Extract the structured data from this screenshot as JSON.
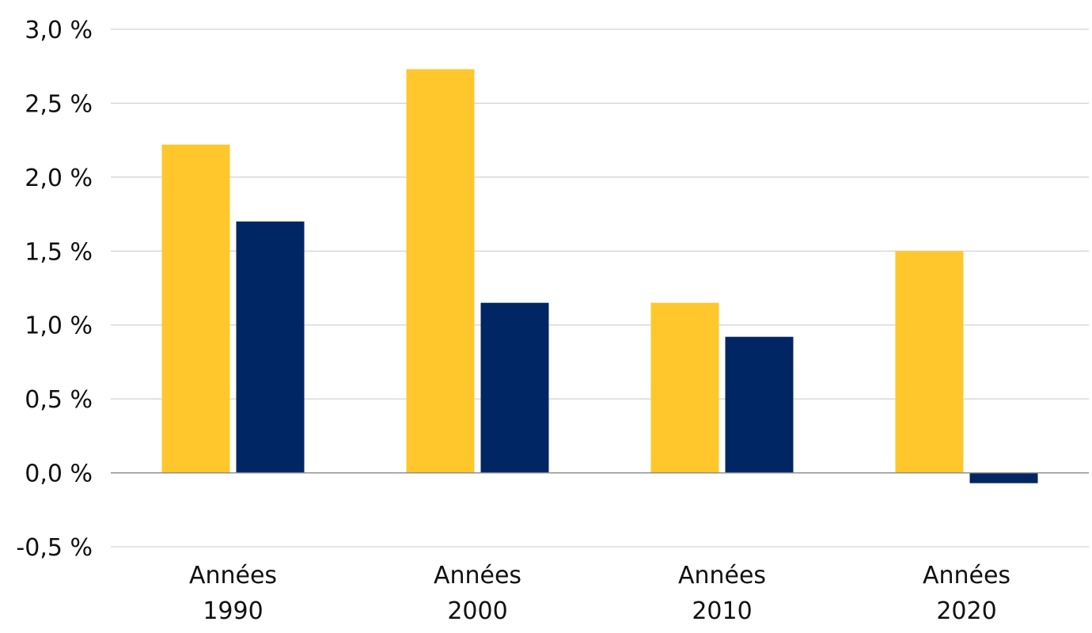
{
  "chart_data": {
    "type": "bar",
    "title": "",
    "xlabel": "",
    "ylabel": "",
    "ylim": [
      -0.5,
      3.0
    ],
    "yticks": [
      {
        "value": -0.5,
        "label": "-0,5 %"
      },
      {
        "value": 0.0,
        "label": "0,0 %"
      },
      {
        "value": 0.5,
        "label": "0,5 %"
      },
      {
        "value": 1.0,
        "label": "1,0 %"
      },
      {
        "value": 1.5,
        "label": "1,5 %"
      },
      {
        "value": 2.0,
        "label": "2,0 %"
      },
      {
        "value": 2.5,
        "label": "2,5 %"
      },
      {
        "value": 3.0,
        "label": "3,0 %"
      }
    ],
    "grid": true,
    "legend": "none",
    "categories": [
      {
        "line1": "Années",
        "line2": "1990"
      },
      {
        "line1": "Années",
        "line2": "2000"
      },
      {
        "line1": "Années",
        "line2": "2010"
      },
      {
        "line1": "Années",
        "line2": "2020"
      }
    ],
    "series": [
      {
        "color": "#FFC72C",
        "values": [
          2.22,
          2.73,
          1.15,
          1.5
        ]
      },
      {
        "color": "#002663",
        "values": [
          1.7,
          1.15,
          0.92,
          -0.07
        ]
      }
    ]
  }
}
